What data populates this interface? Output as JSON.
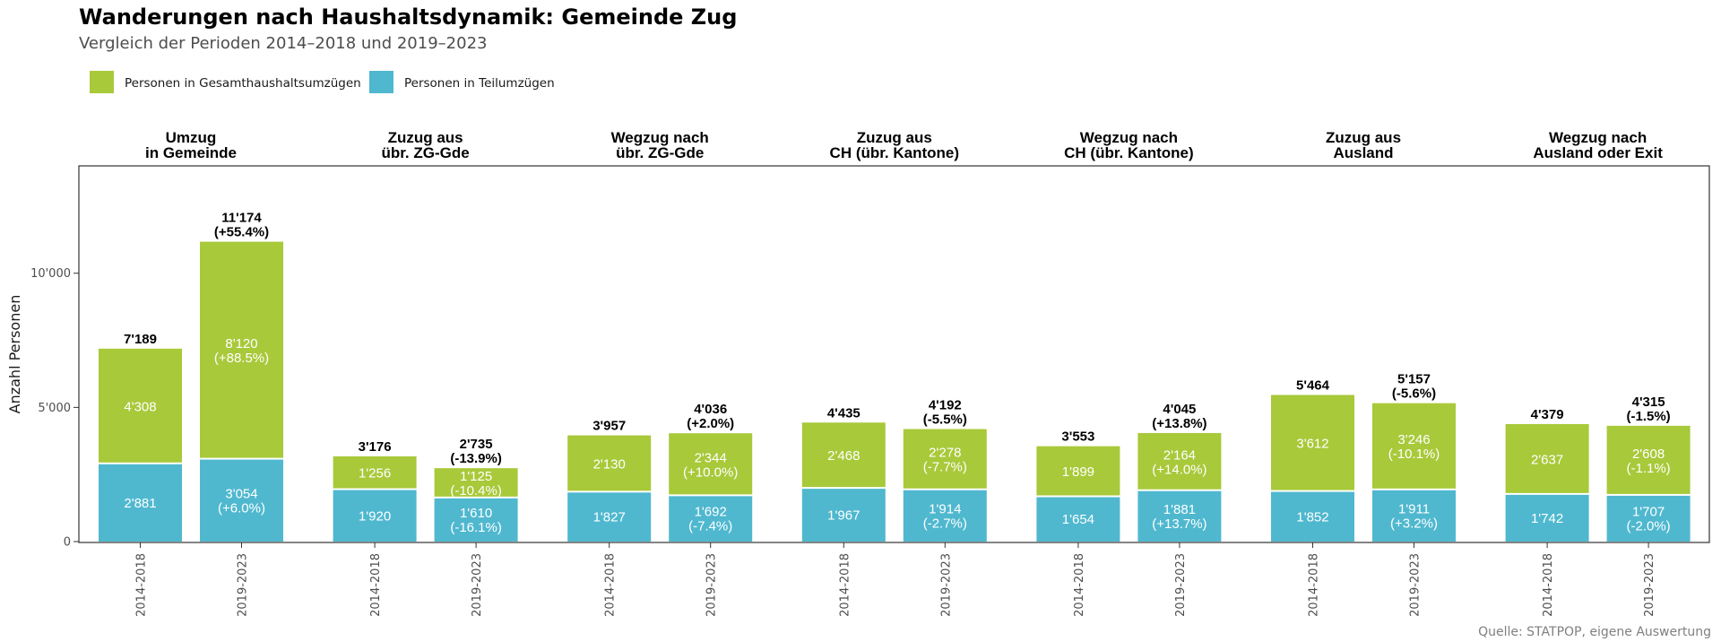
{
  "title": "Wanderungen nach Haushaltsdynamik: Gemeinde Zug",
  "subtitle": "Vergleich der Perioden 2014–2018 und 2019–2023",
  "caption": "Quelle: STATPOP, eigene Auswertung",
  "colors": {
    "gesamt": "#a8c93a",
    "teil": "#4fb8cf"
  },
  "chart_data": {
    "type": "bar",
    "stacked": true,
    "ylabel": "Anzahl Personen",
    "ylim": [
      0,
      14000
    ],
    "yticks": [
      0,
      5000,
      10000
    ],
    "ytick_labels": [
      "0",
      "5'000",
      "10'000"
    ],
    "legend": {
      "position": "top-left",
      "entries": [
        "Personen in Gesamthaushaltsumzügen",
        "Personen in Teilumzügen"
      ]
    },
    "series": [
      {
        "name": "Personen in Gesamthaushaltsumzügen",
        "key": "gesamt"
      },
      {
        "name": "Personen in Teilumzügen",
        "key": "teil"
      }
    ],
    "panels": [
      {
        "title": [
          "Umzug",
          "in Gemeinde"
        ],
        "bars": [
          {
            "period": "2014-2018",
            "gesamt": 4308,
            "teil": 2881,
            "gesamt_label": [
              "4'308"
            ],
            "teil_label": [
              "2'881"
            ],
            "total_label": [
              "7'189"
            ]
          },
          {
            "period": "2019-2023",
            "gesamt": 8120,
            "teil": 3054,
            "gesamt_label": [
              "8'120",
              "(+88.5%)"
            ],
            "teil_label": [
              "3'054",
              "(+6.0%)"
            ],
            "total_label": [
              "11'174",
              "(+55.4%)"
            ]
          }
        ]
      },
      {
        "title": [
          "Zuzug aus",
          "übr. ZG-Gde"
        ],
        "bars": [
          {
            "period": "2014-2018",
            "gesamt": 1256,
            "teil": 1920,
            "gesamt_label": [
              "1'256"
            ],
            "teil_label": [
              "1'920"
            ],
            "total_label": [
              "3'176"
            ]
          },
          {
            "period": "2019-2023",
            "gesamt": 1125,
            "teil": 1610,
            "gesamt_label": [
              "1'125",
              "(-10.4%)"
            ],
            "teil_label": [
              "1'610",
              "(-16.1%)"
            ],
            "total_label": [
              "2'735",
              "(-13.9%)"
            ]
          }
        ]
      },
      {
        "title": [
          "Wegzug nach",
          "übr. ZG-Gde"
        ],
        "bars": [
          {
            "period": "2014-2018",
            "gesamt": 2130,
            "teil": 1827,
            "gesamt_label": [
              "2'130"
            ],
            "teil_label": [
              "1'827"
            ],
            "total_label": [
              "3'957"
            ]
          },
          {
            "period": "2019-2023",
            "gesamt": 2344,
            "teil": 1692,
            "gesamt_label": [
              "2'344",
              "(+10.0%)"
            ],
            "teil_label": [
              "1'692",
              "(-7.4%)"
            ],
            "total_label": [
              "4'036",
              "(+2.0%)"
            ]
          }
        ]
      },
      {
        "title": [
          "Zuzug aus",
          "CH (übr. Kantone)"
        ],
        "bars": [
          {
            "period": "2014-2018",
            "gesamt": 2468,
            "teil": 1967,
            "gesamt_label": [
              "2'468"
            ],
            "teil_label": [
              "1'967"
            ],
            "total_label": [
              "4'435"
            ]
          },
          {
            "period": "2019-2023",
            "gesamt": 2278,
            "teil": 1914,
            "gesamt_label": [
              "2'278",
              "(-7.7%)"
            ],
            "teil_label": [
              "1'914",
              "(-2.7%)"
            ],
            "total_label": [
              "4'192",
              "(-5.5%)"
            ]
          }
        ]
      },
      {
        "title": [
          "Wegzug nach",
          "CH (übr. Kantone)"
        ],
        "bars": [
          {
            "period": "2014-2018",
            "gesamt": 1899,
            "teil": 1654,
            "gesamt_label": [
              "1'899"
            ],
            "teil_label": [
              "1'654"
            ],
            "total_label": [
              "3'553"
            ]
          },
          {
            "period": "2019-2023",
            "gesamt": 2164,
            "teil": 1881,
            "gesamt_label": [
              "2'164",
              "(+14.0%)"
            ],
            "teil_label": [
              "1'881",
              "(+13.7%)"
            ],
            "total_label": [
              "4'045",
              "(+13.8%)"
            ]
          }
        ]
      },
      {
        "title": [
          "Zuzug aus",
          "Ausland"
        ],
        "bars": [
          {
            "period": "2014-2018",
            "gesamt": 3612,
            "teil": 1852,
            "gesamt_label": [
              "3'612"
            ],
            "teil_label": [
              "1'852"
            ],
            "total_label": [
              "5'464"
            ]
          },
          {
            "period": "2019-2023",
            "gesamt": 3246,
            "teil": 1911,
            "gesamt_label": [
              "3'246",
              "(-10.1%)"
            ],
            "teil_label": [
              "1'911",
              "(+3.2%)"
            ],
            "total_label": [
              "5'157",
              "(-5.6%)"
            ]
          }
        ]
      },
      {
        "title": [
          "Wegzug nach",
          "Ausland oder Exit"
        ],
        "bars": [
          {
            "period": "2014-2018",
            "gesamt": 2637,
            "teil": 1742,
            "gesamt_label": [
              "2'637"
            ],
            "teil_label": [
              "1'742"
            ],
            "total_label": [
              "4'379"
            ]
          },
          {
            "period": "2019-2023",
            "gesamt": 2608,
            "teil": 1707,
            "gesamt_label": [
              "2'608",
              "(-1.1%)"
            ],
            "teil_label": [
              "1'707",
              "(-2.0%)"
            ],
            "total_label": [
              "4'315",
              "(-1.5%)"
            ]
          }
        ]
      }
    ]
  }
}
